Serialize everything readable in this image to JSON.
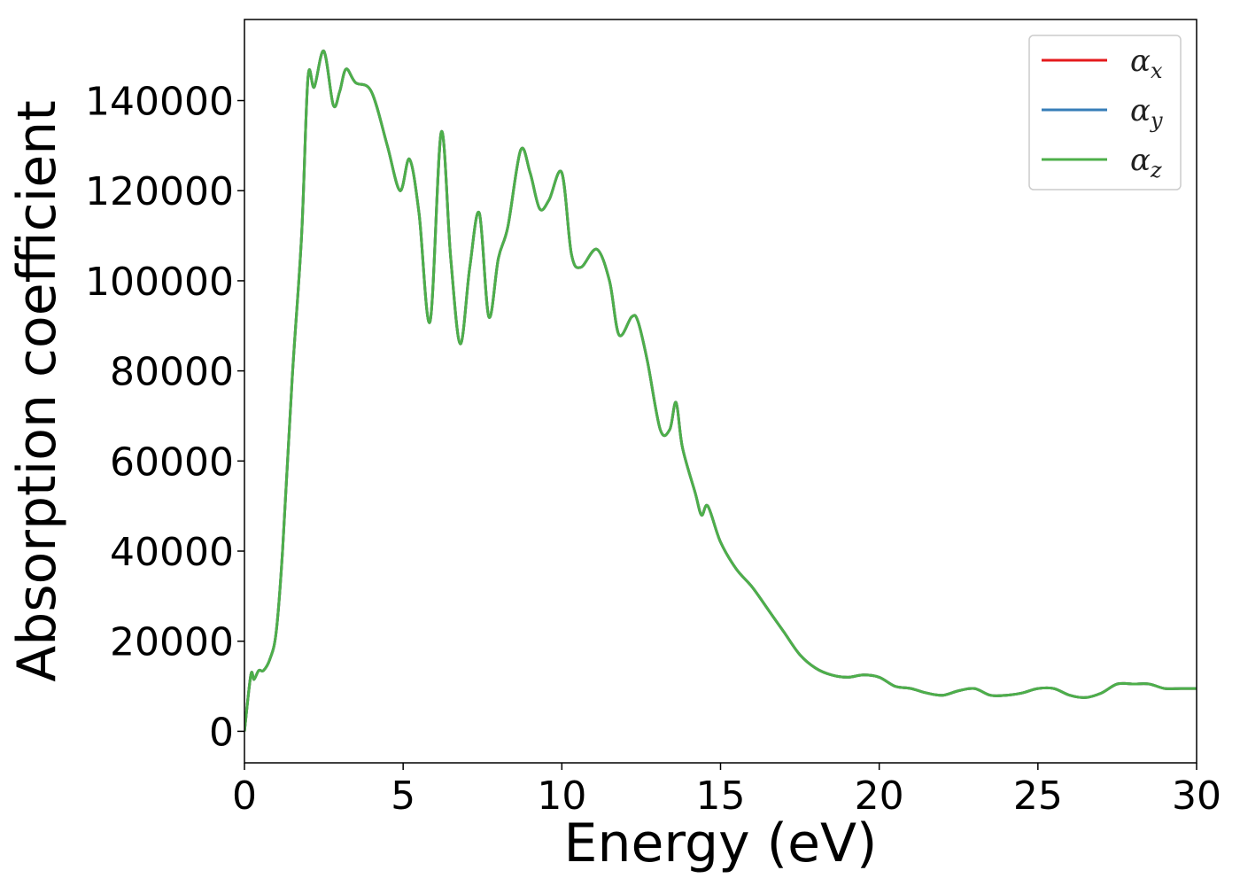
{
  "chart_data": {
    "type": "line",
    "xlabel": "Energy (eV)",
    "ylabel": "Absorption coefficient",
    "xlim": [
      0,
      30
    ],
    "ylim": [
      -7000,
      158000
    ],
    "xticks": [
      0,
      5,
      10,
      15,
      20,
      25,
      30
    ],
    "yticks": [
      0,
      20000,
      40000,
      60000,
      80000,
      100000,
      120000,
      140000
    ],
    "grid": false,
    "legend_position": "top-right",
    "legend": [
      {
        "base": "α",
        "sub": "x",
        "color": "#e41a1c"
      },
      {
        "base": "α",
        "sub": "y",
        "color": "#377eb8"
      },
      {
        "base": "α",
        "sub": "z",
        "color": "#4daf4a"
      }
    ],
    "x": [
      0,
      0.2,
      0.3,
      0.45,
      0.6,
      0.8,
      1.0,
      1.2,
      1.5,
      1.8,
      2.0,
      2.2,
      2.5,
      2.8,
      3.0,
      3.2,
      3.5,
      4.0,
      4.5,
      4.9,
      5.2,
      5.5,
      5.85,
      6.2,
      6.5,
      6.8,
      7.1,
      7.4,
      7.7,
      8.0,
      8.3,
      8.7,
      9.0,
      9.3,
      9.6,
      10.0,
      10.3,
      10.6,
      11.1,
      11.5,
      11.8,
      12.2,
      12.4,
      12.7,
      13.1,
      13.4,
      13.6,
      13.8,
      14.2,
      14.4,
      14.6,
      15.0,
      15.5,
      16.0,
      16.5,
      17.0,
      17.5,
      18.0,
      18.5,
      19.0,
      19.5,
      20.0,
      20.5,
      21.0,
      21.5,
      22.0,
      22.5,
      23.0,
      23.5,
      24.0,
      24.5,
      25.0,
      25.5,
      26.0,
      26.5,
      27.0,
      27.5,
      28.0,
      28.5,
      29.0,
      29.5,
      30.0
    ],
    "series": [
      {
        "name": "αx",
        "color": "#e41a1c",
        "y": [
          0,
          12500,
          11500,
          13500,
          13500,
          16000,
          22000,
          40000,
          78000,
          110000,
          145000,
          143000,
          151000,
          139000,
          142000,
          147000,
          144000,
          142000,
          130000,
          120000,
          127000,
          115000,
          91000,
          133000,
          105000,
          86000,
          103000,
          115000,
          92000,
          105000,
          112000,
          129000,
          124000,
          116000,
          118000,
          124000,
          106000,
          103000,
          107000,
          100000,
          88000,
          92000,
          91000,
          82000,
          67000,
          67000,
          73000,
          63000,
          53000,
          48000,
          50000,
          42000,
          36000,
          32000,
          27000,
          22000,
          17000,
          14000,
          12500,
          12000,
          12500,
          12000,
          10000,
          9500,
          8500,
          8000,
          9000,
          9500,
          8000,
          8000,
          8500,
          9500,
          9500,
          8000,
          7500,
          8500,
          10500,
          10500,
          10500,
          9500,
          9500,
          9500
        ]
      },
      {
        "name": "αy",
        "color": "#377eb8",
        "y": [
          0,
          12500,
          11500,
          13500,
          13500,
          16000,
          22000,
          40000,
          78000,
          110000,
          145000,
          143000,
          151000,
          139000,
          142000,
          147000,
          144000,
          142000,
          130000,
          120000,
          127000,
          115000,
          91000,
          133000,
          105000,
          86000,
          103000,
          115000,
          92000,
          105000,
          112000,
          129000,
          124000,
          116000,
          118000,
          124000,
          106000,
          103000,
          107000,
          100000,
          88000,
          92000,
          91000,
          82000,
          67000,
          67000,
          73000,
          63000,
          53000,
          48000,
          50000,
          42000,
          36000,
          32000,
          27000,
          22000,
          17000,
          14000,
          12500,
          12000,
          12500,
          12000,
          10000,
          9500,
          8500,
          8000,
          9000,
          9500,
          8000,
          8000,
          8500,
          9500,
          9500,
          8000,
          7500,
          8500,
          10500,
          10500,
          10500,
          9500,
          9500,
          9500
        ]
      },
      {
        "name": "αz",
        "color": "#4daf4a",
        "y": [
          0,
          12500,
          11500,
          13500,
          13500,
          16000,
          22000,
          40000,
          78000,
          110000,
          145000,
          143000,
          151000,
          139000,
          142000,
          147000,
          144000,
          142000,
          130000,
          120000,
          127000,
          115000,
          91000,
          133000,
          105000,
          86000,
          103000,
          115000,
          92000,
          105000,
          112000,
          129000,
          124000,
          116000,
          118000,
          124000,
          106000,
          103000,
          107000,
          100000,
          88000,
          92000,
          91000,
          82000,
          67000,
          67000,
          73000,
          63000,
          53000,
          48000,
          50000,
          42000,
          36000,
          32000,
          27000,
          22000,
          17000,
          14000,
          12500,
          12000,
          12500,
          12000,
          10000,
          9500,
          8500,
          8000,
          9000,
          9500,
          8000,
          8000,
          8500,
          9500,
          9500,
          8000,
          7500,
          8500,
          10500,
          10500,
          10500,
          9500,
          9500,
          9500
        ]
      }
    ]
  }
}
